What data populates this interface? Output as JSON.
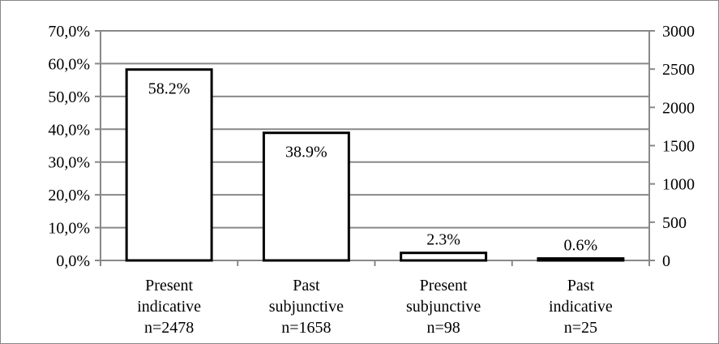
{
  "chart_data": {
    "type": "bar",
    "categories": [
      [
        "Present",
        "indicative",
        "n=2478"
      ],
      [
        "Past",
        "subjunctive",
        "n=1658"
      ],
      [
        "Present",
        "subjunctive",
        "n=98"
      ],
      [
        "Past",
        "indicative",
        "n=25"
      ]
    ],
    "values": [
      58.2,
      38.9,
      2.3,
      0.6
    ],
    "data_labels": [
      "58.2%",
      "38.9%",
      "2.3%",
      "0.6%"
    ],
    "y_left": {
      "min": 0,
      "max": 70,
      "step": 10,
      "tick_labels": [
        "0,0%",
        "10,0%",
        "20,0%",
        "30,0%",
        "40,0%",
        "50,0%",
        "60,0%",
        "70,0%"
      ]
    },
    "y_right": {
      "min": 0,
      "max": 3000,
      "step": 500,
      "tick_labels": [
        "0",
        "500",
        "1000",
        "1500",
        "2000",
        "2500",
        "3000"
      ]
    },
    "grid": true,
    "legend": "none",
    "colors": {
      "bar_fill": "#ffffff",
      "bar_stroke": "#000000",
      "grid": "#888888",
      "axis": "#888888"
    }
  }
}
